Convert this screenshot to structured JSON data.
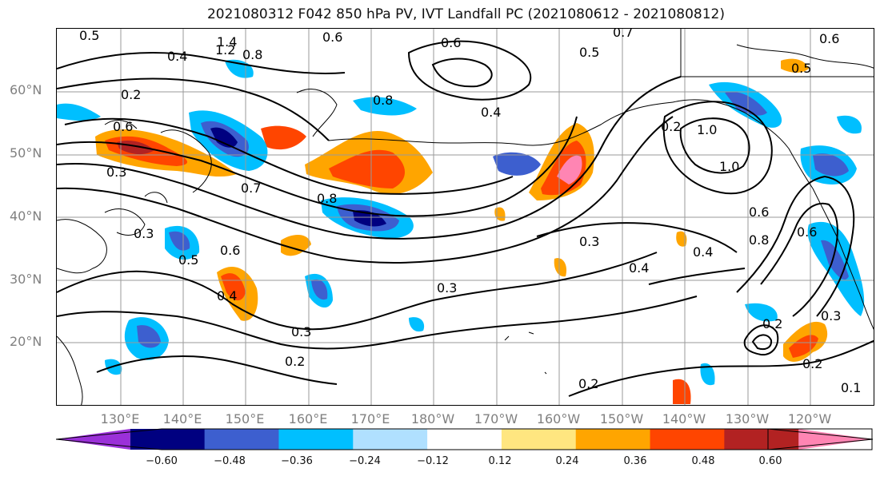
{
  "title": "2021080312 F042 850 hPa PV, IVT Landfall PC (2021080612 - 2021080812)",
  "lat_labels": [
    "60°N",
    "50°N",
    "40°N",
    "30°N",
    "20°N"
  ],
  "lon_labels": [
    "130°E",
    "140°E",
    "150°E",
    "160°E",
    "170°E",
    "180°W",
    "170°W",
    "160°W",
    "150°W",
    "140°W",
    "130°W",
    "120°W"
  ],
  "contour_labels": [
    "0.5",
    "1.4",
    "1.2",
    "0.8",
    "0.6",
    "0.7",
    "0.5",
    "0.6",
    "0.4",
    "0.2",
    "0.6",
    "0.3",
    "0.7",
    "0.8",
    "0.4",
    "0.3",
    "0.5",
    "0.6",
    "0.4",
    "0.8",
    "0.3",
    "0.2",
    "0.3",
    "0.4",
    "0.3",
    "0.2",
    "0.2",
    "1.0",
    "1.0",
    "0.6",
    "0.8",
    "0.6",
    "0.4",
    "0.3",
    "0.2",
    "0.2",
    "0.1",
    "0.6",
    "0.5"
  ],
  "colorbar": {
    "colors": [
      "#9b30d9",
      "#000080",
      "#3d5fcf",
      "#00bfff",
      "#b0e0ff",
      "#ffffff",
      "#ffe680",
      "#ffa500",
      "#ff4500",
      "#b22222",
      "#ff85b3"
    ],
    "ticks": [
      "−0.60",
      "−0.48",
      "−0.36",
      "−0.24",
      "−0.12",
      "0.12",
      "0.24",
      "0.36",
      "0.48",
      "0.60"
    ]
  }
}
